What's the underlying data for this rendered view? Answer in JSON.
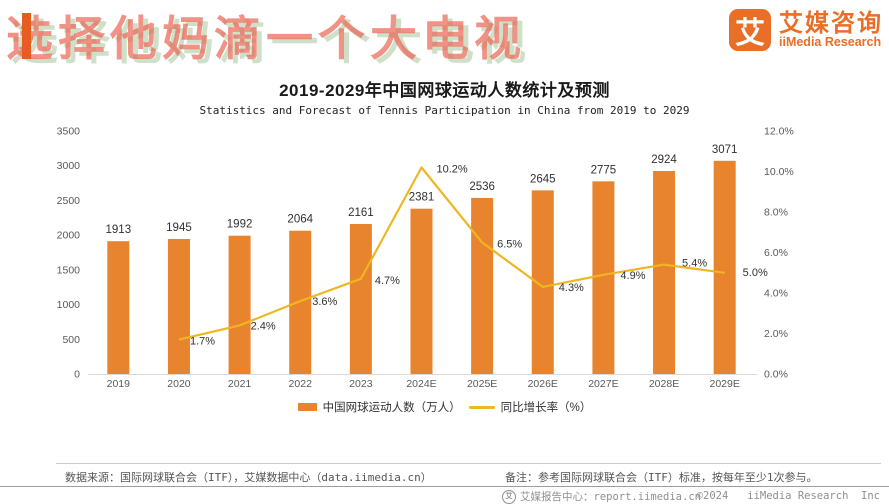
{
  "watermark": {
    "text": "选择他妈滴一个大电视"
  },
  "logo": {
    "symbol": "艾",
    "name_cn": "艾媒咨询",
    "name_en": "iiMedia Research"
  },
  "header": {
    "title": "2019-2029年中国网球运动人数统计及预测",
    "subtitle": "Statistics and Forecast of Tennis Participation in China from 2019 to 2029"
  },
  "chart_data": {
    "type": "bar",
    "title": "2019-2029年中国网球运动人数统计及预测",
    "categories": [
      "2019",
      "2020",
      "2021",
      "2022",
      "2023",
      "2024E",
      "2025E",
      "2026E",
      "2027E",
      "2028E",
      "2029E"
    ],
    "series": [
      {
        "name": "中国网球运动人数（万人）",
        "type": "bar",
        "axis": "left",
        "color": "#E8832E",
        "values": [
          1913,
          1945,
          1992,
          2064,
          2161,
          2381,
          2536,
          2645,
          2775,
          2924,
          3071
        ]
      },
      {
        "name": "同比增长率（%）",
        "type": "line",
        "axis": "right",
        "color": "#EFB621",
        "values": [
          null,
          1.7,
          2.4,
          3.6,
          4.7,
          10.2,
          6.5,
          4.3,
          4.9,
          5.4,
          5.0
        ],
        "label_suffix": "%"
      }
    ],
    "left_axis": {
      "min": 0,
      "max": 3500,
      "step": 500
    },
    "right_axis": {
      "min": 0,
      "max": 12,
      "step": 2,
      "suffix": "%",
      "decimals": 1
    },
    "grid": false,
    "legend_position": "bottom"
  },
  "source": {
    "left": "数据来源：国际网球联合会（ITF），艾媒数据中心（data.iimedia.cn）",
    "right": "备注：参考国际网球联合会（ITF）标准，按每年至少1次参与。"
  },
  "footer": {
    "report_center": "艾媒报告中心：report.iimedia.cn",
    "copyright": "©2024   iiMedia Research  Inc"
  }
}
